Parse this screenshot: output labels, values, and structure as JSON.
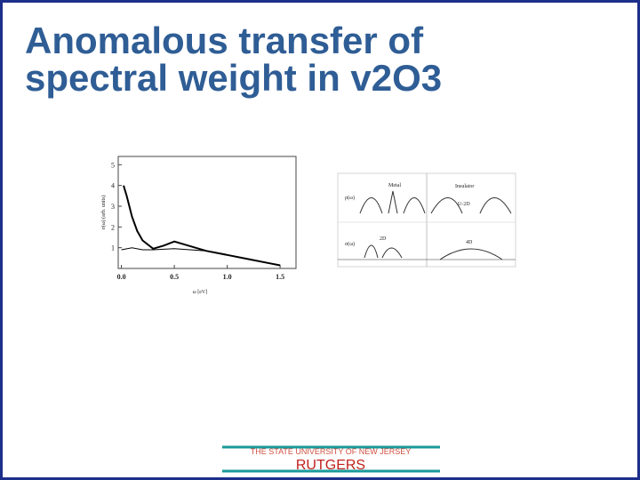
{
  "header": {
    "title_line1": "Anomalous transfer of",
    "title_line2": "spectral weight in v2O3"
  },
  "plot": {
    "type": "line",
    "x_label": "ω [eV]",
    "y_label": "σ(ω) (arb. units)",
    "xlim": [
      -0.03,
      1.65
    ],
    "ylim": [
      0,
      5.4
    ],
    "xticks": [
      {
        "value": 0,
        "label": "0.0"
      },
      0.5,
      {
        "value": 1,
        "label": "1.0"
      },
      1.5
    ],
    "yticks": [
      1,
      2,
      3,
      4,
      5
    ],
    "series": [
      {
        "color": "#000000",
        "x": [
          0.02,
          0.05,
          0.1,
          0.15,
          0.2,
          0.3,
          0.4,
          0.5,
          0.6,
          0.8,
          1.0,
          1.2,
          1.4,
          1.5
        ],
        "values": [
          4.0,
          3.5,
          2.5,
          1.8,
          1.35,
          0.95,
          1.1,
          1.3,
          1.15,
          0.85,
          0.65,
          0.45,
          0.25,
          0.15
        ]
      },
      {
        "color": "#000000",
        "x": [
          0.0,
          0.1,
          0.2,
          0.3,
          0.5,
          0.8,
          1.0,
          1.2,
          1.4,
          1.5
        ],
        "values": [
          0.9,
          1.0,
          0.9,
          0.9,
          0.95,
          0.85,
          0.65,
          0.45,
          0.25,
          0.15
        ]
      }
    ]
  },
  "diagram": {
    "metal": "Metal",
    "insulator": "Insulator",
    "rho": "ρ(ω)",
    "sigma": "σ(ω)",
    "gap": "U-2D",
    "low_width": "2D",
    "high_width": "4D"
  },
  "footer": {
    "university": "THE STATE UNIVERSITY OF NEW JERSEY",
    "name": "RUTGERS"
  }
}
